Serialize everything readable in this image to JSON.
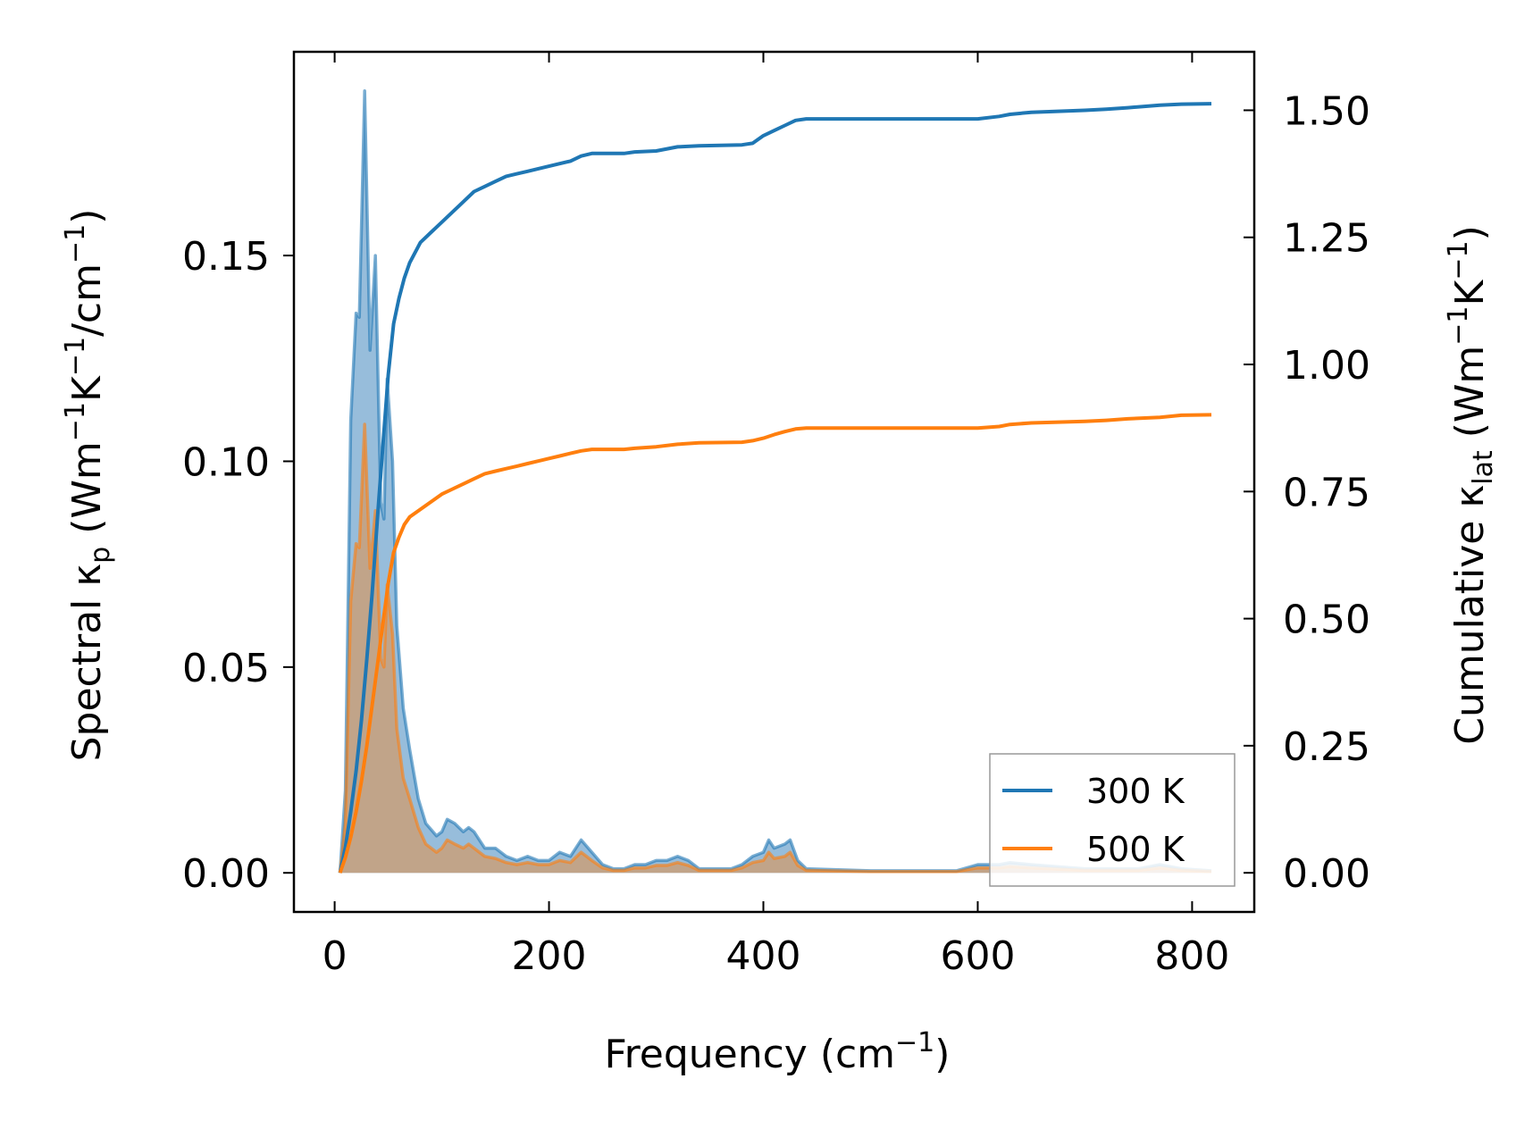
{
  "chart_data": {
    "type": "area",
    "xlabel": "Frequency (cm",
    "xlabel_sup": "−1",
    "xlabel_end": ")",
    "ylabel_left": {
      "p1": "Spectral κ",
      "sub": "p",
      "p2": " (Wm",
      "sup1": "−1",
      "p3": "K",
      "sup2": "−1",
      "p4": "/cm",
      "sup3": "−1",
      "p5": ")"
    },
    "ylabel_right": {
      "p1": "Cumulative κ",
      "sub": "lat",
      "p2": " (Wm",
      "sup1": "−1",
      "p3": "K",
      "sup2": "−1",
      "p4": ")"
    },
    "xlim": [
      -38,
      858
    ],
    "ylim_left": [
      -0.0095,
      0.1995
    ],
    "ylim_right": [
      -0.077,
      1.615
    ],
    "xticks": [
      0,
      200,
      400,
      600,
      800
    ],
    "xtick_labels": [
      "0",
      "200",
      "400",
      "600",
      "800"
    ],
    "yticks_left": [
      0.0,
      0.05,
      0.1,
      0.15
    ],
    "ytick_labels_left": [
      "0.00",
      "0.05",
      "0.10",
      "0.15"
    ],
    "yticks_right": [
      0.0,
      0.25,
      0.5,
      0.75,
      1.0,
      1.25,
      1.5
    ],
    "ytick_labels_right": [
      "0.00",
      "0.25",
      "0.50",
      "0.75",
      "1.00",
      "1.25",
      "1.50"
    ],
    "grid": false,
    "legend_position": "lower-right",
    "colors": {
      "300K": "#1f77b4",
      "500K": "#ff7f0e",
      "fill_300K": "#91b9d9",
      "fill_500K": "#c8a07a"
    },
    "series": [
      {
        "name": "300 K",
        "kind": "spectral",
        "axis": "left",
        "points": [
          [
            5,
            0
          ],
          [
            10,
            0.02
          ],
          [
            15,
            0.11
          ],
          [
            20,
            0.136
          ],
          [
            23,
            0.135
          ],
          [
            28,
            0.19
          ],
          [
            33,
            0.127
          ],
          [
            38,
            0.15
          ],
          [
            43,
            0.09
          ],
          [
            46,
            0.086
          ],
          [
            49,
            0.12
          ],
          [
            54,
            0.1
          ],
          [
            58,
            0.06
          ],
          [
            64,
            0.04
          ],
          [
            70,
            0.03
          ],
          [
            78,
            0.018
          ],
          [
            85,
            0.012
          ],
          [
            95,
            0.009
          ],
          [
            100,
            0.01
          ],
          [
            105,
            0.013
          ],
          [
            112,
            0.012
          ],
          [
            120,
            0.01
          ],
          [
            125,
            0.011
          ],
          [
            130,
            0.01
          ],
          [
            135,
            0.008
          ],
          [
            140,
            0.006
          ],
          [
            150,
            0.006
          ],
          [
            160,
            0.004
          ],
          [
            170,
            0.003
          ],
          [
            180,
            0.004
          ],
          [
            190,
            0.003
          ],
          [
            200,
            0.003
          ],
          [
            210,
            0.005
          ],
          [
            220,
            0.004
          ],
          [
            230,
            0.008
          ],
          [
            240,
            0.005
          ],
          [
            250,
            0.002
          ],
          [
            260,
            0.001
          ],
          [
            270,
            0.001
          ],
          [
            280,
            0.002
          ],
          [
            290,
            0.002
          ],
          [
            300,
            0.003
          ],
          [
            310,
            0.003
          ],
          [
            320,
            0.004
          ],
          [
            330,
            0.003
          ],
          [
            340,
            0.001
          ],
          [
            350,
            0.001
          ],
          [
            360,
            0.001
          ],
          [
            370,
            0.001
          ],
          [
            380,
            0.002
          ],
          [
            390,
            0.004
          ],
          [
            400,
            0.005
          ],
          [
            405,
            0.008
          ],
          [
            410,
            0.006
          ],
          [
            420,
            0.007
          ],
          [
            425,
            0.008
          ],
          [
            432,
            0.003
          ],
          [
            440,
            0.001
          ],
          [
            500,
            0.0005
          ],
          [
            580,
            0.0005
          ],
          [
            600,
            0.002
          ],
          [
            620,
            0.002
          ],
          [
            630,
            0.0025
          ],
          [
            650,
            0.002
          ],
          [
            700,
            0.001
          ],
          [
            750,
            0.001
          ],
          [
            770,
            0.002
          ],
          [
            790,
            0.001
          ],
          [
            818,
            0.0005
          ]
        ]
      },
      {
        "name": "500 K",
        "kind": "spectral",
        "axis": "left",
        "points": [
          [
            5,
            0
          ],
          [
            10,
            0.012
          ],
          [
            15,
            0.066
          ],
          [
            20,
            0.08
          ],
          [
            23,
            0.079
          ],
          [
            28,
            0.109
          ],
          [
            33,
            0.074
          ],
          [
            38,
            0.088
          ],
          [
            43,
            0.052
          ],
          [
            46,
            0.05
          ],
          [
            49,
            0.07
          ],
          [
            54,
            0.058
          ],
          [
            58,
            0.035
          ],
          [
            64,
            0.023
          ],
          [
            70,
            0.018
          ],
          [
            78,
            0.011
          ],
          [
            85,
            0.007
          ],
          [
            95,
            0.005
          ],
          [
            100,
            0.006
          ],
          [
            105,
            0.008
          ],
          [
            112,
            0.007
          ],
          [
            120,
            0.006
          ],
          [
            125,
            0.007
          ],
          [
            130,
            0.006
          ],
          [
            135,
            0.005
          ],
          [
            140,
            0.004
          ],
          [
            150,
            0.0035
          ],
          [
            160,
            0.0025
          ],
          [
            170,
            0.002
          ],
          [
            180,
            0.0025
          ],
          [
            190,
            0.002
          ],
          [
            200,
            0.002
          ],
          [
            210,
            0.003
          ],
          [
            220,
            0.0025
          ],
          [
            230,
            0.005
          ],
          [
            240,
            0.003
          ],
          [
            250,
            0.0012
          ],
          [
            260,
            0.0006
          ],
          [
            270,
            0.0006
          ],
          [
            280,
            0.0012
          ],
          [
            290,
            0.0012
          ],
          [
            300,
            0.0018
          ],
          [
            310,
            0.0018
          ],
          [
            320,
            0.0025
          ],
          [
            330,
            0.0018
          ],
          [
            340,
            0.0006
          ],
          [
            350,
            0.0006
          ],
          [
            360,
            0.0006
          ],
          [
            370,
            0.0006
          ],
          [
            380,
            0.0012
          ],
          [
            390,
            0.0025
          ],
          [
            400,
            0.003
          ],
          [
            405,
            0.005
          ],
          [
            410,
            0.0035
          ],
          [
            420,
            0.004
          ],
          [
            425,
            0.005
          ],
          [
            432,
            0.0018
          ],
          [
            440,
            0.0006
          ],
          [
            500,
            0.0003
          ],
          [
            580,
            0.0003
          ],
          [
            600,
            0.0012
          ],
          [
            620,
            0.0012
          ],
          [
            630,
            0.0015
          ],
          [
            650,
            0.0012
          ],
          [
            700,
            0.0006
          ],
          [
            750,
            0.0006
          ],
          [
            770,
            0.0012
          ],
          [
            790,
            0.0006
          ],
          [
            818,
            0.0003
          ]
        ]
      },
      {
        "name": "300 K",
        "kind": "cumulative",
        "axis": "right",
        "points": [
          [
            5,
            0
          ],
          [
            10,
            0.05
          ],
          [
            15,
            0.12
          ],
          [
            20,
            0.2
          ],
          [
            25,
            0.3
          ],
          [
            30,
            0.42
          ],
          [
            35,
            0.55
          ],
          [
            40,
            0.7
          ],
          [
            45,
            0.84
          ],
          [
            50,
            0.98
          ],
          [
            55,
            1.08
          ],
          [
            60,
            1.13
          ],
          [
            65,
            1.17
          ],
          [
            70,
            1.2
          ],
          [
            75,
            1.22
          ],
          [
            80,
            1.24
          ],
          [
            90,
            1.26
          ],
          [
            100,
            1.28
          ],
          [
            110,
            1.3
          ],
          [
            120,
            1.32
          ],
          [
            130,
            1.34
          ],
          [
            140,
            1.35
          ],
          [
            150,
            1.36
          ],
          [
            160,
            1.37
          ],
          [
            170,
            1.375
          ],
          [
            180,
            1.38
          ],
          [
            190,
            1.385
          ],
          [
            200,
            1.39
          ],
          [
            210,
            1.395
          ],
          [
            220,
            1.4
          ],
          [
            230,
            1.41
          ],
          [
            240,
            1.415
          ],
          [
            250,
            1.415
          ],
          [
            270,
            1.415
          ],
          [
            280,
            1.418
          ],
          [
            300,
            1.42
          ],
          [
            320,
            1.428
          ],
          [
            340,
            1.43
          ],
          [
            380,
            1.432
          ],
          [
            390,
            1.435
          ],
          [
            400,
            1.45
          ],
          [
            410,
            1.46
          ],
          [
            420,
            1.47
          ],
          [
            430,
            1.48
          ],
          [
            440,
            1.483
          ],
          [
            600,
            1.483
          ],
          [
            620,
            1.488
          ],
          [
            630,
            1.492
          ],
          [
            650,
            1.496
          ],
          [
            700,
            1.5
          ],
          [
            720,
            1.502
          ],
          [
            740,
            1.505
          ],
          [
            770,
            1.51
          ],
          [
            790,
            1.512
          ],
          [
            818,
            1.513
          ]
        ]
      },
      {
        "name": "500 K",
        "kind": "cumulative",
        "axis": "right",
        "points": [
          [
            5,
            0
          ],
          [
            10,
            0.03
          ],
          [
            15,
            0.07
          ],
          [
            20,
            0.12
          ],
          [
            25,
            0.18
          ],
          [
            30,
            0.25
          ],
          [
            35,
            0.33
          ],
          [
            40,
            0.41
          ],
          [
            45,
            0.49
          ],
          [
            50,
            0.57
          ],
          [
            55,
            0.63
          ],
          [
            60,
            0.66
          ],
          [
            65,
            0.685
          ],
          [
            70,
            0.7
          ],
          [
            80,
            0.715
          ],
          [
            90,
            0.73
          ],
          [
            100,
            0.745
          ],
          [
            110,
            0.755
          ],
          [
            120,
            0.765
          ],
          [
            130,
            0.775
          ],
          [
            140,
            0.785
          ],
          [
            150,
            0.79
          ],
          [
            160,
            0.795
          ],
          [
            170,
            0.8
          ],
          [
            180,
            0.805
          ],
          [
            190,
            0.81
          ],
          [
            200,
            0.815
          ],
          [
            210,
            0.82
          ],
          [
            220,
            0.825
          ],
          [
            230,
            0.83
          ],
          [
            240,
            0.833
          ],
          [
            250,
            0.833
          ],
          [
            270,
            0.833
          ],
          [
            280,
            0.835
          ],
          [
            300,
            0.838
          ],
          [
            320,
            0.843
          ],
          [
            340,
            0.846
          ],
          [
            380,
            0.847
          ],
          [
            390,
            0.85
          ],
          [
            400,
            0.855
          ],
          [
            410,
            0.862
          ],
          [
            420,
            0.868
          ],
          [
            430,
            0.873
          ],
          [
            440,
            0.875
          ],
          [
            600,
            0.875
          ],
          [
            620,
            0.878
          ],
          [
            630,
            0.882
          ],
          [
            650,
            0.885
          ],
          [
            700,
            0.888
          ],
          [
            720,
            0.89
          ],
          [
            740,
            0.893
          ],
          [
            770,
            0.896
          ],
          [
            790,
            0.9
          ],
          [
            818,
            0.901
          ]
        ]
      }
    ]
  }
}
